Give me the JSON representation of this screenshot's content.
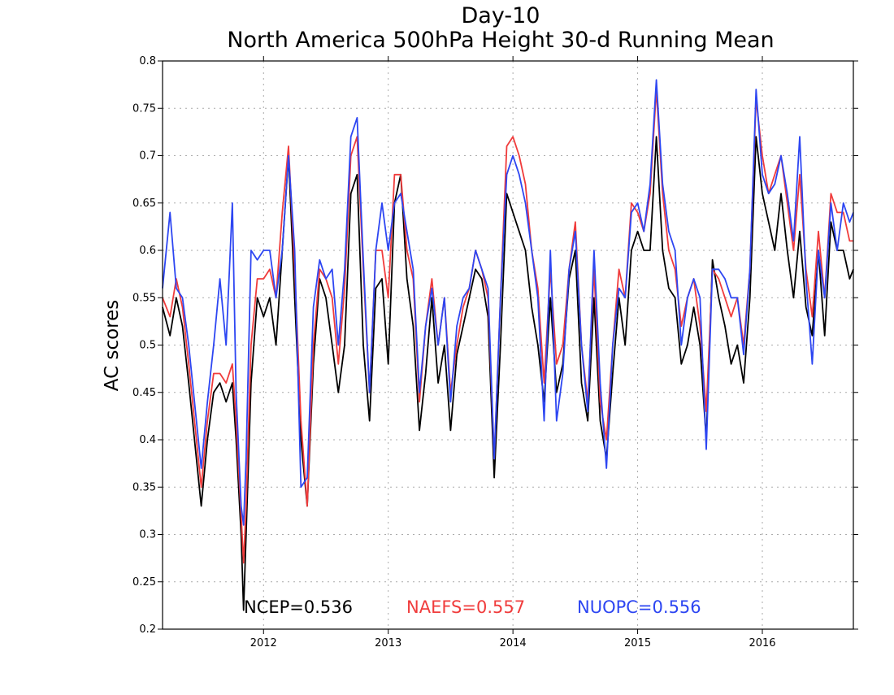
{
  "colors": {
    "NCEP": "#000000",
    "NAEFS": "#f03c3c",
    "NUOPC": "#2d46f2",
    "grid": "#aaaaaa"
  },
  "chart_data": {
    "type": "line",
    "title": "Day-10",
    "subtitle": "North America 500hPa Height 30-d Running Mean",
    "xlabel": "",
    "ylabel": "AC scores",
    "x_range": [
      "2011-03-10",
      "2016-09-25"
    ],
    "xlim": [
      2011.19,
      2016.73
    ],
    "ylim": [
      0.2,
      0.8
    ],
    "x_ticks": [
      2012,
      2013,
      2014,
      2015,
      2016
    ],
    "x_tick_labels": [
      "2012",
      "2013",
      "2014",
      "2015",
      "2016"
    ],
    "y_ticks": [
      0.2,
      0.25,
      0.3,
      0.35,
      0.4,
      0.45,
      0.5,
      0.55,
      0.6,
      0.65,
      0.7,
      0.75,
      0.8
    ],
    "y_tick_labels": [
      "0.2",
      "0.25",
      "0.3",
      "0.35",
      "0.4",
      "0.45",
      "0.5",
      "0.55",
      "0.6",
      "0.65",
      "0.7",
      "0.75",
      "0.8"
    ],
    "grid": true,
    "legend": "bottom (inline score labels)",
    "series": [
      {
        "name": "NCEP",
        "label": "NCEP=0.536",
        "mean": 0.536,
        "x": [
          2011.19,
          2011.25,
          2011.3,
          2011.35,
          2011.4,
          2011.5,
          2011.55,
          2011.6,
          2011.65,
          2011.7,
          2011.75,
          2011.78,
          2011.82,
          2011.84,
          2011.86,
          2011.9,
          2011.95,
          2012.0,
          2012.05,
          2012.1,
          2012.15,
          2012.2,
          2012.25,
          2012.3,
          2012.35,
          2012.4,
          2012.45,
          2012.5,
          2012.55,
          2012.6,
          2012.65,
          2012.7,
          2012.75,
          2012.8,
          2012.85,
          2012.9,
          2012.95,
          2013.0,
          2013.05,
          2013.1,
          2013.15,
          2013.2,
          2013.25,
          2013.3,
          2013.35,
          2013.4,
          2013.45,
          2013.5,
          2013.55,
          2013.6,
          2013.65,
          2013.7,
          2013.75,
          2013.8,
          2013.85,
          2013.9,
          2013.95,
          2014.0,
          2014.05,
          2014.1,
          2014.15,
          2014.2,
          2014.25,
          2014.3,
          2014.35,
          2014.4,
          2014.45,
          2014.5,
          2014.55,
          2014.6,
          2014.65,
          2014.7,
          2014.75,
          2014.8,
          2014.85,
          2014.9,
          2014.95,
          2015.0,
          2015.05,
          2015.1,
          2015.15,
          2015.2,
          2015.25,
          2015.3,
          2015.35,
          2015.4,
          2015.45,
          2015.5,
          2015.55,
          2015.6,
          2015.65,
          2015.7,
          2015.75,
          2015.8,
          2015.85,
          2015.9,
          2015.95,
          2016.0,
          2016.05,
          2016.1,
          2016.15,
          2016.2,
          2016.25,
          2016.3,
          2016.35,
          2016.4,
          2016.45,
          2016.5,
          2016.55,
          2016.6,
          2016.65,
          2016.7,
          2016.73
        ],
        "values": [
          0.54,
          0.51,
          0.55,
          0.52,
          0.46,
          0.33,
          0.4,
          0.45,
          0.46,
          0.44,
          0.46,
          0.4,
          0.3,
          0.22,
          0.3,
          0.46,
          0.55,
          0.53,
          0.55,
          0.5,
          0.6,
          0.7,
          0.55,
          0.4,
          0.33,
          0.48,
          0.57,
          0.55,
          0.5,
          0.45,
          0.5,
          0.66,
          0.68,
          0.5,
          0.42,
          0.56,
          0.57,
          0.48,
          0.65,
          0.68,
          0.57,
          0.52,
          0.41,
          0.47,
          0.55,
          0.46,
          0.5,
          0.41,
          0.49,
          0.52,
          0.55,
          0.58,
          0.57,
          0.53,
          0.36,
          0.5,
          0.66,
          0.64,
          0.62,
          0.6,
          0.54,
          0.5,
          0.44,
          0.55,
          0.45,
          0.48,
          0.57,
          0.6,
          0.46,
          0.42,
          0.55,
          0.42,
          0.38,
          0.47,
          0.55,
          0.5,
          0.6,
          0.62,
          0.6,
          0.6,
          0.72,
          0.6,
          0.56,
          0.55,
          0.48,
          0.5,
          0.54,
          0.5,
          0.4,
          0.59,
          0.55,
          0.52,
          0.48,
          0.5,
          0.46,
          0.55,
          0.72,
          0.66,
          0.63,
          0.6,
          0.66,
          0.6,
          0.55,
          0.62,
          0.54,
          0.51,
          0.6,
          0.51,
          0.63,
          0.6,
          0.6,
          0.57,
          0.58
        ]
      },
      {
        "name": "NAEFS",
        "label": "NAEFS=0.557",
        "mean": 0.557,
        "x": [
          2011.19,
          2011.25,
          2011.3,
          2011.35,
          2011.4,
          2011.5,
          2011.55,
          2011.6,
          2011.65,
          2011.7,
          2011.75,
          2011.78,
          2011.82,
          2011.84,
          2011.86,
          2011.9,
          2011.95,
          2012.0,
          2012.05,
          2012.1,
          2012.15,
          2012.2,
          2012.25,
          2012.3,
          2012.35,
          2012.4,
          2012.45,
          2012.5,
          2012.55,
          2012.6,
          2012.65,
          2012.7,
          2012.75,
          2012.8,
          2012.85,
          2012.9,
          2012.95,
          2013.0,
          2013.05,
          2013.1,
          2013.15,
          2013.2,
          2013.25,
          2013.3,
          2013.35,
          2013.4,
          2013.45,
          2013.5,
          2013.55,
          2013.6,
          2013.65,
          2013.7,
          2013.75,
          2013.8,
          2013.85,
          2013.9,
          2013.95,
          2014.0,
          2014.05,
          2014.1,
          2014.15,
          2014.2,
          2014.25,
          2014.3,
          2014.35,
          2014.4,
          2014.45,
          2014.5,
          2014.55,
          2014.6,
          2014.65,
          2014.7,
          2014.75,
          2014.8,
          2014.85,
          2014.9,
          2014.95,
          2015.0,
          2015.05,
          2015.1,
          2015.15,
          2015.2,
          2015.25,
          2015.3,
          2015.35,
          2015.4,
          2015.45,
          2015.5,
          2015.55,
          2015.6,
          2015.65,
          2015.7,
          2015.75,
          2015.8,
          2015.85,
          2015.9,
          2015.95,
          2016.0,
          2016.05,
          2016.1,
          2016.15,
          2016.2,
          2016.25,
          2016.3,
          2016.35,
          2016.4,
          2016.45,
          2016.5,
          2016.55,
          2016.6,
          2016.65,
          2016.7,
          2016.73
        ],
        "values": [
          0.55,
          0.53,
          0.57,
          0.54,
          0.48,
          0.35,
          0.42,
          0.47,
          0.47,
          0.46,
          0.48,
          0.42,
          0.32,
          0.27,
          0.33,
          0.5,
          0.57,
          0.57,
          0.58,
          0.55,
          0.64,
          0.71,
          0.58,
          0.42,
          0.33,
          0.5,
          0.58,
          0.57,
          0.55,
          0.48,
          0.56,
          0.7,
          0.72,
          0.58,
          0.45,
          0.6,
          0.6,
          0.55,
          0.68,
          0.68,
          0.6,
          0.57,
          0.44,
          0.52,
          0.57,
          0.5,
          0.55,
          0.45,
          0.5,
          0.54,
          0.56,
          0.6,
          0.58,
          0.55,
          0.38,
          0.55,
          0.71,
          0.72,
          0.7,
          0.67,
          0.6,
          0.56,
          0.46,
          0.58,
          0.48,
          0.5,
          0.58,
          0.63,
          0.5,
          0.44,
          0.58,
          0.44,
          0.4,
          0.5,
          0.58,
          0.55,
          0.65,
          0.64,
          0.62,
          0.66,
          0.77,
          0.66,
          0.6,
          0.58,
          0.52,
          0.55,
          0.57,
          0.52,
          0.43,
          0.58,
          0.57,
          0.55,
          0.53,
          0.55,
          0.5,
          0.58,
          0.76,
          0.7,
          0.66,
          0.68,
          0.7,
          0.65,
          0.6,
          0.68,
          0.58,
          0.53,
          0.62,
          0.55,
          0.66,
          0.64,
          0.64,
          0.61,
          0.61
        ]
      },
      {
        "name": "NUOPC",
        "label": "NUOPC=0.556",
        "mean": 0.556,
        "x": [
          2011.19,
          2011.25,
          2011.3,
          2011.35,
          2011.4,
          2011.5,
          2011.55,
          2011.6,
          2011.65,
          2011.7,
          2011.75,
          2011.78,
          2011.82,
          2011.84,
          2011.86,
          2011.9,
          2011.95,
          2012.0,
          2012.05,
          2012.1,
          2012.15,
          2012.2,
          2012.25,
          2012.3,
          2012.35,
          2012.4,
          2012.45,
          2012.5,
          2012.55,
          2012.6,
          2012.65,
          2012.7,
          2012.75,
          2012.8,
          2012.85,
          2012.9,
          2012.95,
          2013.0,
          2013.05,
          2013.1,
          2013.15,
          2013.2,
          2013.25,
          2013.3,
          2013.35,
          2013.4,
          2013.45,
          2013.5,
          2013.55,
          2013.6,
          2013.65,
          2013.7,
          2013.75,
          2013.8,
          2013.85,
          2013.9,
          2013.95,
          2014.0,
          2014.05,
          2014.1,
          2014.15,
          2014.2,
          2014.25,
          2014.3,
          2014.35,
          2014.4,
          2014.45,
          2014.5,
          2014.55,
          2014.6,
          2014.65,
          2014.7,
          2014.75,
          2014.8,
          2014.85,
          2014.9,
          2014.95,
          2015.0,
          2015.05,
          2015.1,
          2015.15,
          2015.2,
          2015.25,
          2015.3,
          2015.35,
          2015.4,
          2015.45,
          2015.5,
          2015.55,
          2015.6,
          2015.65,
          2015.7,
          2015.75,
          2015.8,
          2015.85,
          2015.9,
          2015.95,
          2016.0,
          2016.05,
          2016.1,
          2016.15,
          2016.2,
          2016.25,
          2016.3,
          2016.35,
          2016.4,
          2016.45,
          2016.5,
          2016.55,
          2016.6,
          2016.65,
          2016.7,
          2016.73
        ],
        "values": [
          0.56,
          0.64,
          0.56,
          0.55,
          0.5,
          0.37,
          0.44,
          0.5,
          0.57,
          0.5,
          0.65,
          0.45,
          0.33,
          0.31,
          0.38,
          0.6,
          0.59,
          0.6,
          0.6,
          0.55,
          0.6,
          0.7,
          0.6,
          0.35,
          0.36,
          0.54,
          0.59,
          0.57,
          0.58,
          0.5,
          0.58,
          0.72,
          0.74,
          0.59,
          0.45,
          0.6,
          0.65,
          0.6,
          0.65,
          0.66,
          0.62,
          0.58,
          0.45,
          0.52,
          0.56,
          0.5,
          0.55,
          0.44,
          0.52,
          0.55,
          0.56,
          0.6,
          0.58,
          0.56,
          0.38,
          0.55,
          0.68,
          0.7,
          0.68,
          0.65,
          0.6,
          0.55,
          0.42,
          0.6,
          0.42,
          0.47,
          0.58,
          0.62,
          0.5,
          0.43,
          0.6,
          0.46,
          0.37,
          0.5,
          0.56,
          0.55,
          0.64,
          0.65,
          0.62,
          0.67,
          0.78,
          0.67,
          0.62,
          0.6,
          0.5,
          0.55,
          0.57,
          0.55,
          0.39,
          0.58,
          0.58,
          0.57,
          0.55,
          0.55,
          0.49,
          0.58,
          0.77,
          0.68,
          0.66,
          0.67,
          0.7,
          0.66,
          0.61,
          0.72,
          0.57,
          0.48,
          0.6,
          0.55,
          0.65,
          0.6,
          0.65,
          0.63,
          0.64
        ]
      }
    ]
  }
}
